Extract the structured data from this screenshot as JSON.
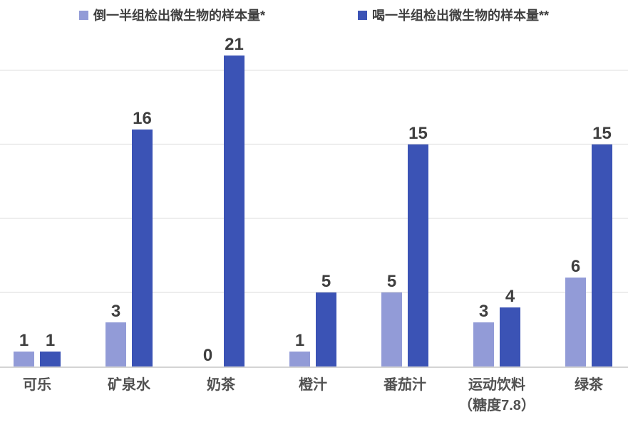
{
  "chart_data": {
    "type": "bar",
    "title": "",
    "xlabel": "",
    "ylabel": "",
    "categories": [
      "可乐",
      "矿泉水",
      "奶茶",
      "橙汁",
      "番茄汁",
      "运动饮料\n（糖度7.8）",
      "绿茶"
    ],
    "series": [
      {
        "name": "倒一半组检出微生物的样本量*",
        "color": "#929BD7",
        "values": [
          1,
          3,
          0,
          1,
          5,
          3,
          6
        ]
      },
      {
        "name": "喝一半组检出微生物的样本量**",
        "color": "#3B53B5",
        "values": [
          1,
          16,
          21,
          5,
          15,
          4,
          15
        ]
      }
    ],
    "ylim": [
      0,
      21.875
    ],
    "gridlines": [
      5,
      10,
      15,
      20
    ],
    "grid": true,
    "legend_position": "top",
    "data_labels": true
  },
  "colors": {
    "grid": "#d9d9d9",
    "axis_line": "#d4d4d4",
    "value_label": "#3f3f3f",
    "category_label": "#515151",
    "legend_text": "#3f3f3f",
    "background": "#ffffff"
  }
}
